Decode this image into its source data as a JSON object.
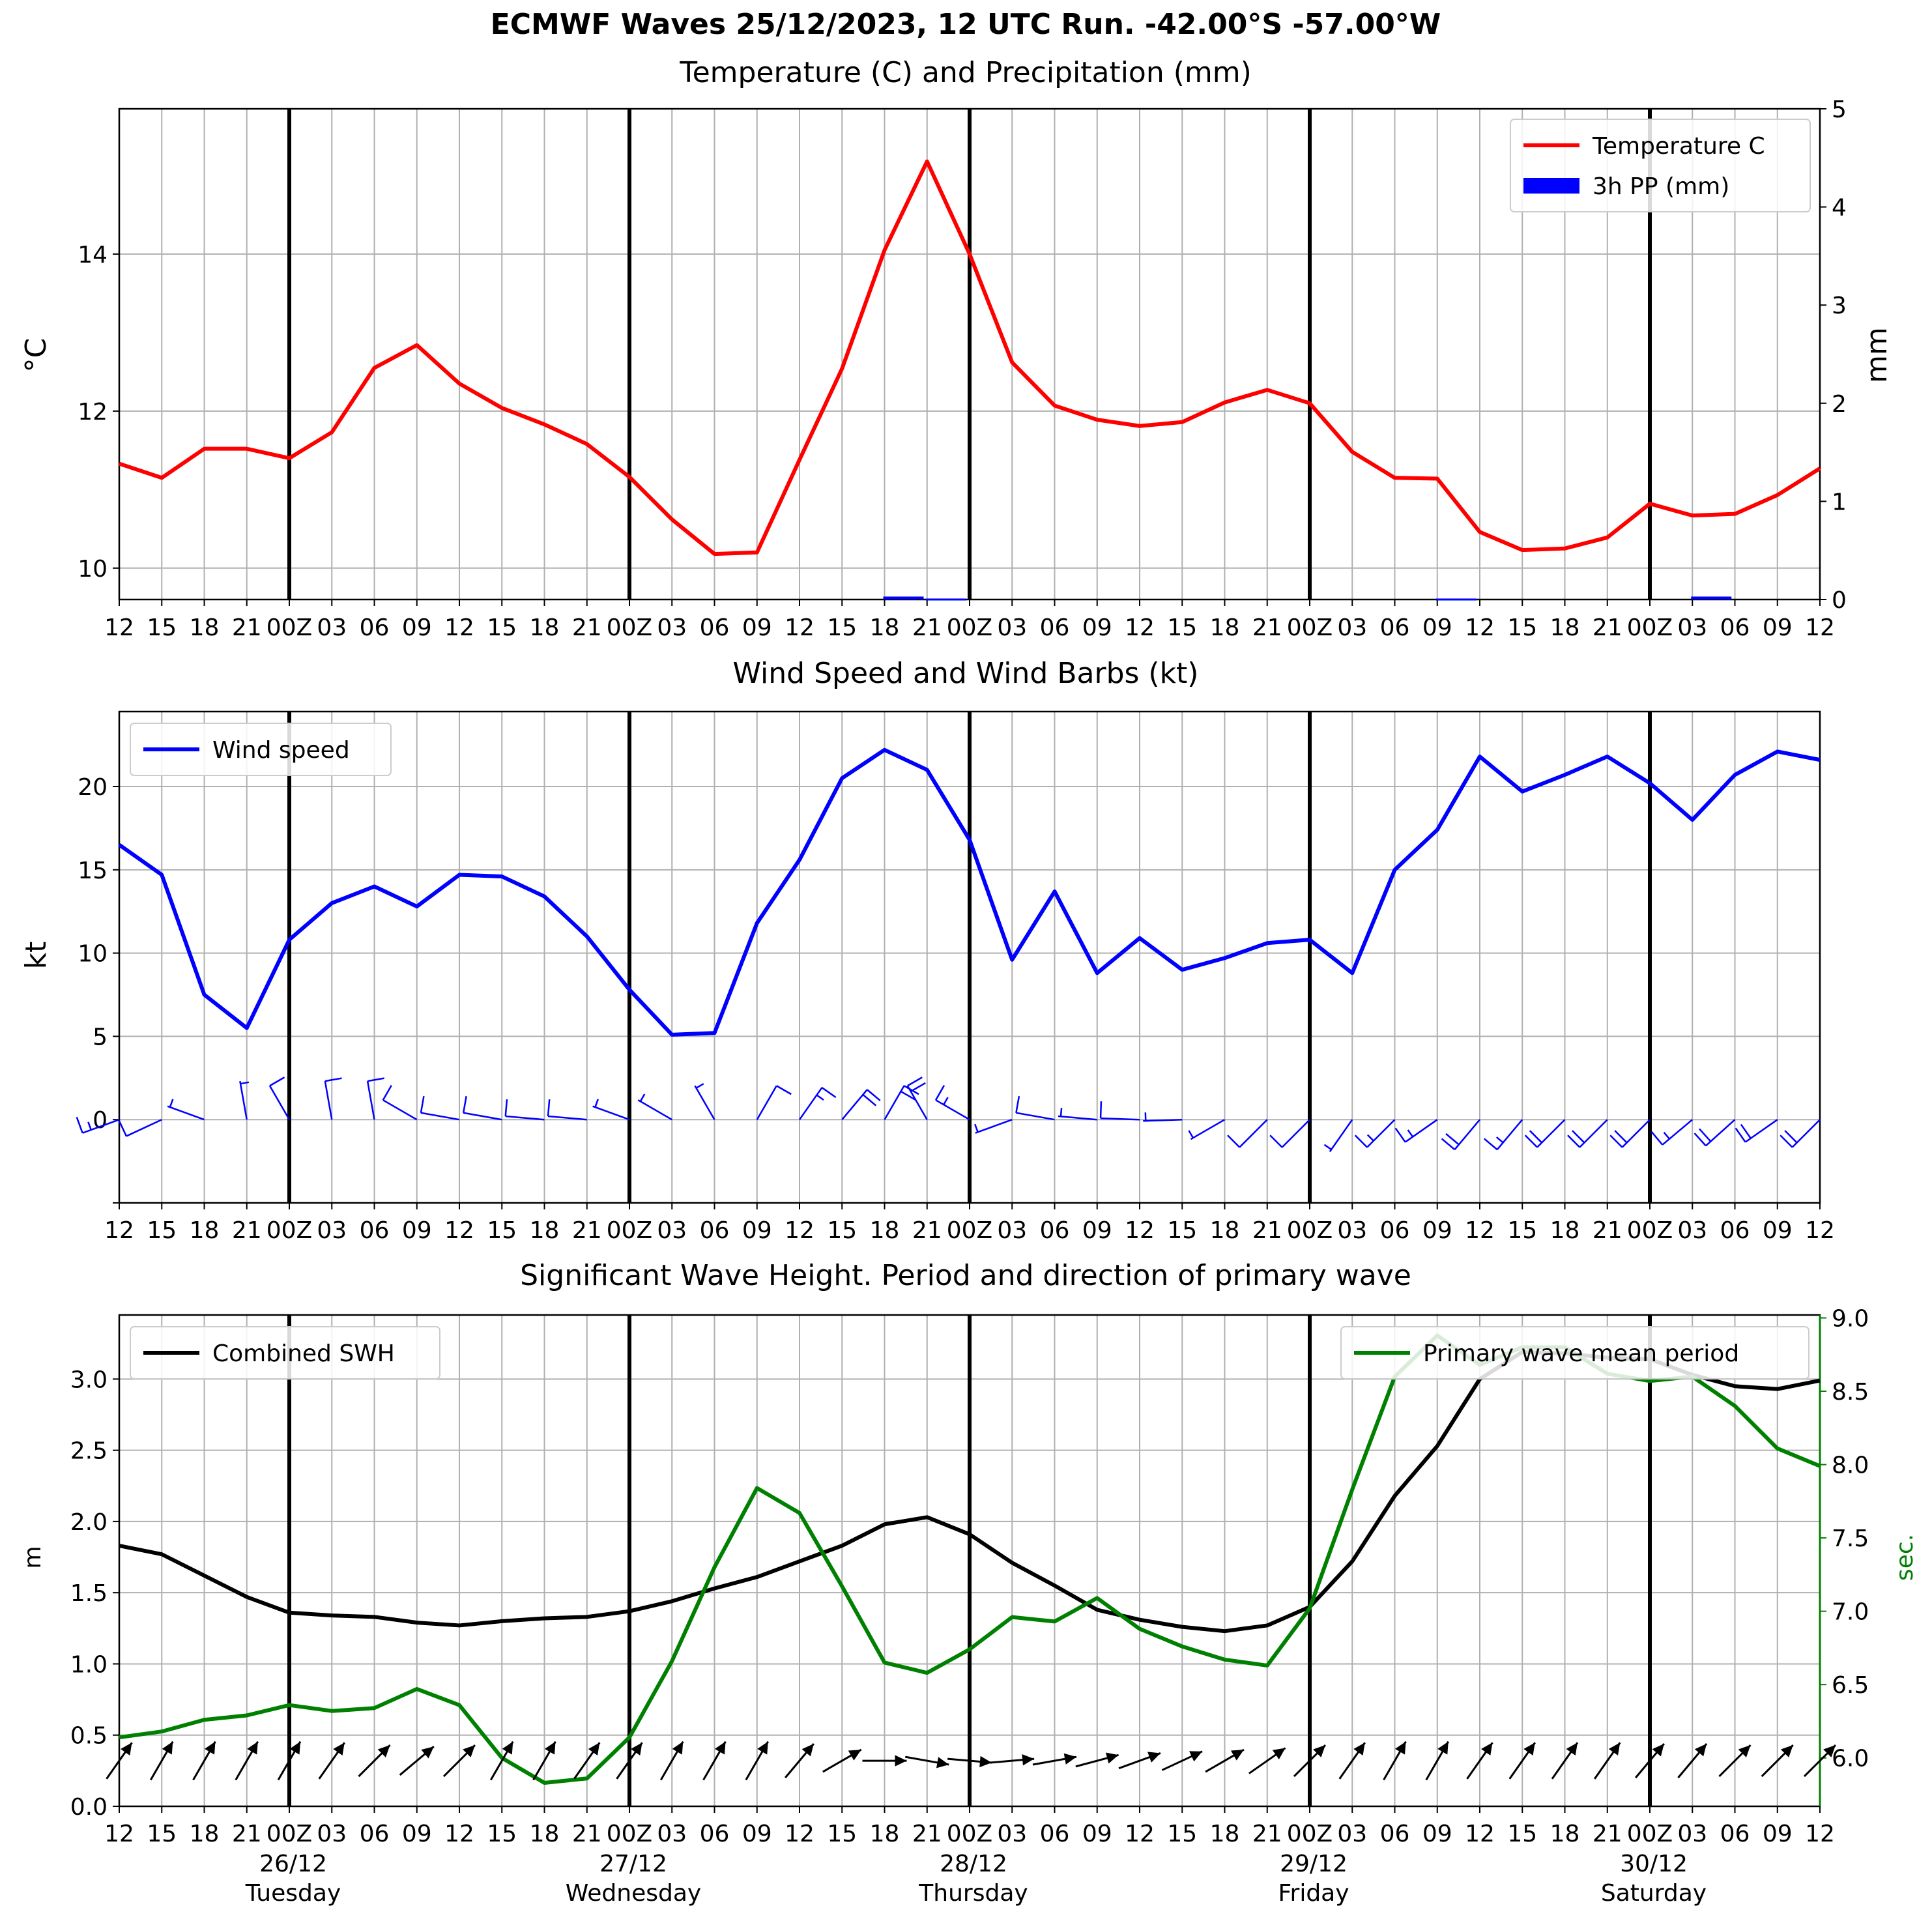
{
  "figure": {
    "suptitle": "ECMWF Waves 25/12/2023, 12 UTC Run. -42.00°S -57.00°W"
  },
  "time_ticks": [
    "12",
    "15",
    "18",
    "21",
    "00Z",
    "03",
    "06",
    "09",
    "12",
    "15",
    "18",
    "21",
    "00Z",
    "03",
    "06",
    "09",
    "12",
    "15",
    "18",
    "21",
    "00Z",
    "03",
    "06",
    "09",
    "12",
    "15",
    "18",
    "21",
    "00Z",
    "03",
    "06",
    "09",
    "12",
    "15",
    "18",
    "21",
    "00Z",
    "03",
    "06",
    "09",
    "12"
  ],
  "day_labels": [
    {
      "index": 4,
      "date": "26/12",
      "weekday": "Tuesday"
    },
    {
      "index": 12,
      "date": "27/12",
      "weekday": "Wednesday"
    },
    {
      "index": 20,
      "date": "28/12",
      "weekday": "Thursday"
    },
    {
      "index": 28,
      "date": "29/12",
      "weekday": "Friday"
    },
    {
      "index": 36,
      "date": "30/12",
      "weekday": "Saturday"
    }
  ],
  "colors": {
    "temperature": "#ff0000",
    "precipitation": "#0000ff",
    "wind": "#0000ff",
    "swh": "#000000",
    "period": "#008000",
    "grid": "#b0b0b0",
    "day_line": "#000000"
  },
  "chart_data": [
    {
      "type": "line",
      "title": "Temperature (C) and Precipitation (mm)",
      "ylabel": "°C",
      "ylabel_right": "mm",
      "ylim": [
        9.6,
        15.85
      ],
      "ylim_right": [
        0,
        5
      ],
      "yticks": [
        10,
        12,
        14
      ],
      "yticks_right": [
        0,
        1,
        2,
        3,
        4,
        5
      ],
      "grid": true,
      "legend_position": "upper right",
      "series": [
        {
          "name": "Temperature C",
          "axis": "left",
          "values": [
            11.33,
            11.15,
            11.52,
            11.52,
            11.4,
            11.73,
            12.55,
            12.84,
            12.35,
            12.04,
            11.83,
            11.58,
            11.16,
            10.62,
            10.18,
            10.2,
            11.38,
            12.54,
            14.05,
            15.18,
            14.0,
            12.62,
            12.07,
            11.89,
            11.81,
            11.86,
            12.11,
            12.27,
            12.1,
            11.48,
            11.15,
            11.14,
            10.46,
            10.23,
            10.25,
            10.39,
            10.82,
            10.67,
            10.69,
            10.93,
            11.27
          ]
        },
        {
          "name": "3h PP (mm)",
          "axis": "right",
          "kind": "bar",
          "values": [
            0,
            0,
            0,
            0,
            0,
            0,
            0,
            0,
            0,
            0,
            0,
            0,
            0,
            0,
            0,
            0,
            0,
            0,
            0.03,
            0.01,
            0,
            0,
            0,
            0,
            0,
            0,
            0,
            0,
            0,
            0,
            0,
            0.01,
            0,
            0,
            0,
            0,
            0,
            0.03,
            0,
            0,
            0
          ]
        }
      ]
    },
    {
      "type": "line",
      "title": "Wind Speed and Wind Barbs (kt)",
      "ylabel": "kt",
      "ylim": [
        -5,
        24.5
      ],
      "yticks": [
        0,
        5,
        10,
        15,
        20
      ],
      "grid": true,
      "legend_position": "upper left",
      "series": [
        {
          "name": "Wind speed",
          "values": [
            16.5,
            14.7,
            7.5,
            5.5,
            10.8,
            13.0,
            14.0,
            12.8,
            14.7,
            14.6,
            13.4,
            11.0,
            7.8,
            5.1,
            5.2,
            11.8,
            15.6,
            20.5,
            22.2,
            21.0,
            16.8,
            9.6,
            13.7,
            8.8,
            10.9,
            9.0,
            9.7,
            10.6,
            10.8,
            8.8,
            15.0,
            17.4,
            21.8,
            19.7,
            20.7,
            21.8,
            20.2,
            18.0,
            20.7,
            22.1,
            21.6
          ]
        },
        {
          "name": "wind barb direction (deg)",
          "kind": "barbs",
          "values": [
            250,
            245,
            290,
            350,
            330,
            350,
            350,
            300,
            280,
            280,
            275,
            275,
            290,
            300,
            330,
            30,
            35,
            40,
            30,
            330,
            300,
            250,
            280,
            275,
            272,
            268,
            240,
            225,
            225,
            215,
            225,
            235,
            220,
            220,
            225,
            225,
            225,
            230,
            228,
            235,
            225
          ]
        }
      ]
    },
    {
      "type": "line",
      "title": "Significant Wave Height. Period and direction of primary wave",
      "ylabel": "m",
      "ylabel_right": "sec.",
      "ylim": [
        0,
        3.45
      ],
      "ylim_right": [
        5.67,
        9.02
      ],
      "yticks": [
        0.0,
        0.5,
        1.0,
        1.5,
        2.0,
        2.5,
        3.0
      ],
      "yticks_right": [
        6.0,
        6.5,
        7.0,
        7.5,
        8.0,
        8.5,
        9.0
      ],
      "grid": true,
      "legend_position": [
        "upper left",
        "upper right"
      ],
      "series": [
        {
          "name": "Combined SWH",
          "axis": "left",
          "values": [
            1.83,
            1.77,
            1.62,
            1.47,
            1.36,
            1.34,
            1.33,
            1.29,
            1.27,
            1.3,
            1.32,
            1.33,
            1.37,
            1.44,
            1.53,
            1.61,
            1.72,
            1.83,
            1.98,
            2.03,
            1.91,
            1.71,
            1.55,
            1.38,
            1.31,
            1.26,
            1.23,
            1.27,
            1.4,
            1.72,
            2.18,
            2.53,
            3.0,
            3.19,
            3.18,
            3.15,
            3.14,
            3.03,
            2.95,
            2.93,
            2.99
          ]
        },
        {
          "name": "Primary wave mean period",
          "axis": "right",
          "values": [
            6.14,
            6.18,
            6.26,
            6.29,
            6.36,
            6.32,
            6.34,
            6.47,
            6.36,
            6.0,
            5.83,
            5.86,
            6.14,
            6.66,
            7.3,
            7.84,
            7.67,
            7.17,
            6.65,
            6.58,
            6.74,
            6.96,
            6.93,
            7.09,
            6.88,
            6.76,
            6.67,
            6.63,
            7.02,
            7.83,
            8.6,
            8.88,
            8.68,
            8.8,
            8.8,
            8.62,
            8.57,
            8.6,
            8.4,
            8.11,
            7.99
          ]
        },
        {
          "name": "primary wave direction (deg)",
          "kind": "arrows",
          "values": [
            215,
            210,
            210,
            210,
            210,
            215,
            225,
            230,
            225,
            210,
            210,
            215,
            215,
            210,
            210,
            210,
            220,
            240,
            270,
            280,
            275,
            265,
            260,
            255,
            250,
            245,
            240,
            235,
            225,
            215,
            210,
            210,
            215,
            215,
            215,
            215,
            220,
            220,
            225,
            225,
            225
          ]
        }
      ]
    }
  ]
}
